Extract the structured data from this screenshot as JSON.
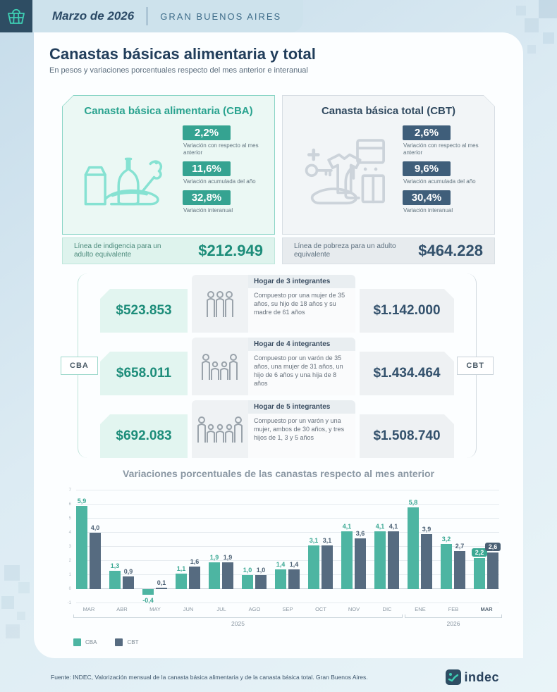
{
  "header": {
    "month": "Marzo de 2026",
    "region": "GRAN BUENOS AIRES"
  },
  "title": "Canastas básicas alimentaria y total",
  "subtitle": "En pesos y variaciones porcentuales respecto del mes anterior e interanual",
  "cards": {
    "cba": {
      "title": "Canasta básica alimentaria (CBA)",
      "badges": [
        {
          "value": "2,2%",
          "label": "Variación con respecto al mes anterior"
        },
        {
          "value": "11,6%",
          "label": "Variación acumulada del año"
        },
        {
          "value": "32,8%",
          "label": "Variación interanual"
        }
      ],
      "line_label": "Línea de indigencia para un adulto equivalente",
      "line_value": "$212.949"
    },
    "cbt": {
      "title": "Canasta básica total (CBT)",
      "badges": [
        {
          "value": "2,6%",
          "label": "Variación con respecto al mes anterior"
        },
        {
          "value": "9,6%",
          "label": "Variación acumulada del año"
        },
        {
          "value": "30,4%",
          "label": "Variación interanual"
        }
      ],
      "line_label": "Línea de pobreza para un adulto equivalente",
      "line_value": "$464.228"
    }
  },
  "households": {
    "left_tab": "CBA",
    "right_tab": "CBT",
    "rows": [
      {
        "members": 3,
        "cba": "$523.853",
        "title": "Hogar de 3 integrantes",
        "desc": "Compuesto por una mujer de 35 años, su hijo de 18 años y su madre de 61 años",
        "cbt": "$1.142.000"
      },
      {
        "members": 4,
        "cba": "$658.011",
        "title": "Hogar de 4 integrantes",
        "desc": "Compuesto por un varón de 35 años, una mujer de 31 años, un hijo de 6 años y una hija de 8 años",
        "cbt": "$1.434.464"
      },
      {
        "members": 5,
        "cba": "$692.083",
        "title": "Hogar de 5 integrantes",
        "desc": "Compuesto por un varón y una mujer, ambos de 30 años, y tres hijos de 1, 3 y 5 años",
        "cbt": "$1.508.740"
      }
    ]
  },
  "chart_data": {
    "type": "bar",
    "title": "Variaciones porcentuales de las canastas respecto al mes anterior",
    "categories": [
      "MAR",
      "ABR",
      "MAY",
      "JUN",
      "JUL",
      "AGO",
      "SEP",
      "OCT",
      "NOV",
      "DIC",
      "ENE",
      "FEB",
      "MAR"
    ],
    "series": [
      {
        "name": "CBA",
        "color": "#4db5a2",
        "label_color": "#3aa893",
        "values": [
          5.9,
          1.3,
          -0.4,
          1.1,
          1.9,
          1.0,
          1.4,
          3.1,
          4.1,
          4.1,
          5.8,
          3.2,
          2.2
        ]
      },
      {
        "name": "CBT",
        "color": "#566b80",
        "label_color": "#4a5f73",
        "values": [
          4.0,
          0.9,
          0.1,
          1.6,
          1.9,
          1.0,
          1.4,
          3.1,
          3.6,
          4.1,
          3.9,
          2.7,
          2.6
        ]
      }
    ],
    "ylim": [
      -1,
      7
    ],
    "yticks": [
      -1,
      0,
      1,
      2,
      3,
      4,
      5,
      6,
      7
    ],
    "grid": true,
    "legend_position": "bottom-left",
    "highlight_last": true,
    "year_groups": [
      {
        "label": "2025",
        "from": 0,
        "to": 9
      },
      {
        "label": "2026",
        "from": 10,
        "to": 12
      }
    ]
  },
  "footer": {
    "source": "Fuente: INDEC, Valorización mensual de la canasta básica alimentaria y de la canasta básica total. Gran Buenos Aires.",
    "logo_text": "indec"
  }
}
